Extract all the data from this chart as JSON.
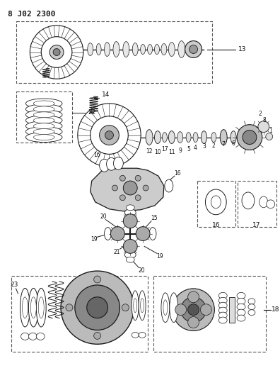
{
  "title": "8 J02 2300",
  "bg_color": "#ffffff",
  "line_color": "#1a1a1a",
  "fig_width": 3.96,
  "fig_height": 5.33,
  "dpi": 100
}
